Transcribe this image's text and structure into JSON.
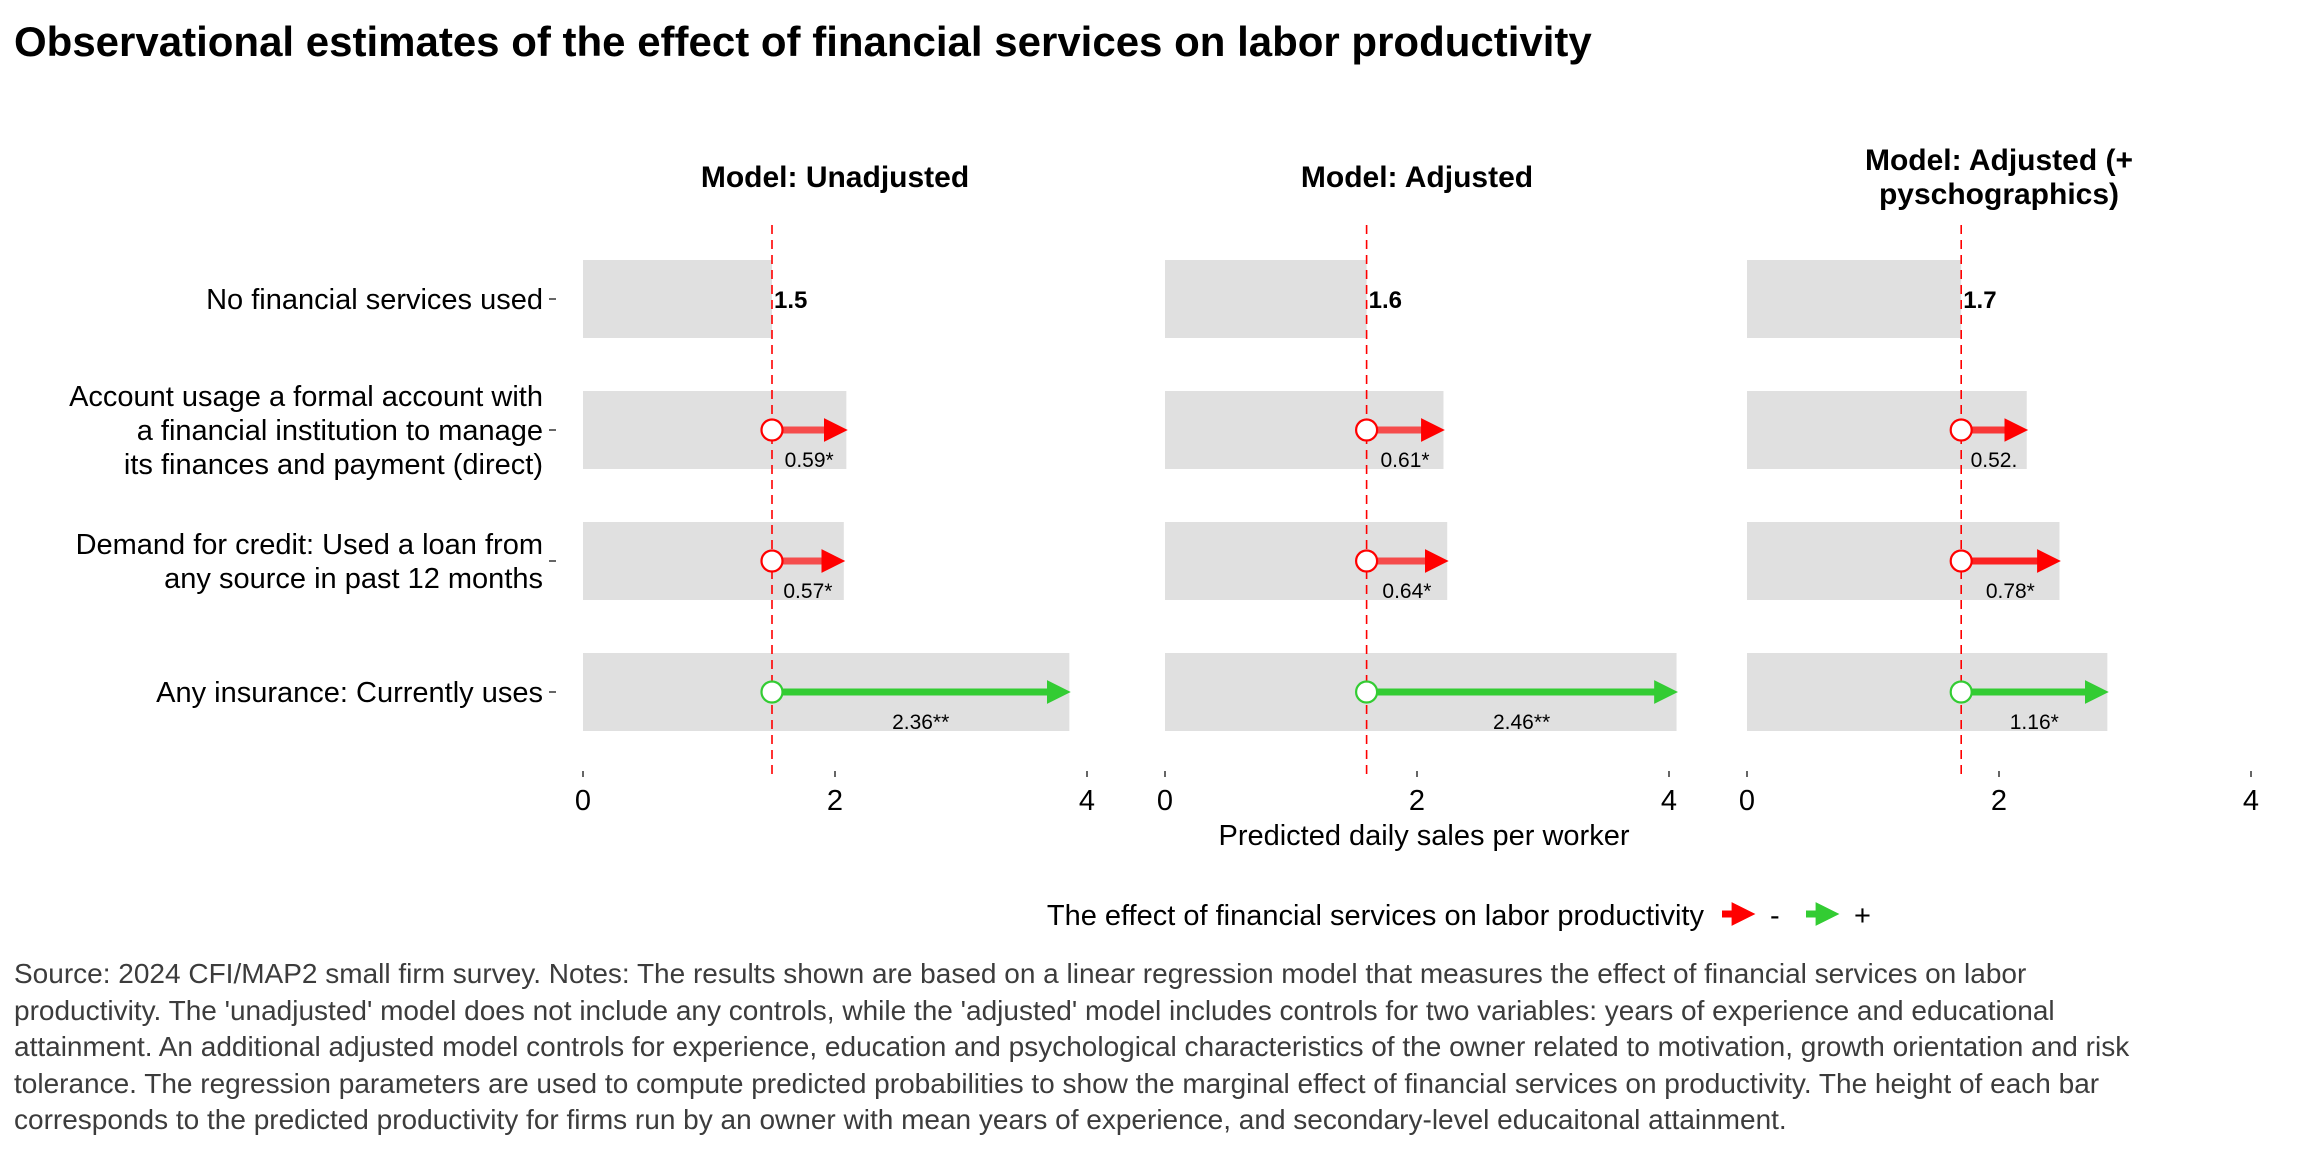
{
  "chart_data": {
    "type": "bar",
    "title": "Observational estimates of the effect of financial services on labor productivity",
    "xlabel": "Predicted daily sales per worker",
    "xlim": [
      0,
      4
    ],
    "xticks": [
      "0",
      "2",
      "4"
    ],
    "categories": [
      [
        "No financial services used"
      ],
      [
        "Account usage a formal account with",
        "a financial institution to manage",
        "its finances and payment (direct)"
      ],
      [
        "Demand for credit: Used a loan from",
        "any source in past 12 months"
      ],
      [
        "Any insurance: Currently uses"
      ]
    ],
    "panels": [
      {
        "name": [
          "Model: Unadjusted"
        ],
        "baseline": 1.5,
        "baseline_label": "1.5",
        "values": [
          1.5,
          2.09,
          2.07,
          3.86
        ],
        "effects": [
          null,
          0.59,
          0.57,
          2.36
        ],
        "effect_labels": [
          "",
          "0.59*",
          "0.57*",
          "2.36**"
        ]
      },
      {
        "name": [
          "Model: Adjusted"
        ],
        "baseline": 1.6,
        "baseline_label": "1.6",
        "values": [
          1.6,
          2.21,
          2.24,
          4.06
        ],
        "effects": [
          null,
          0.61,
          0.64,
          2.46
        ],
        "effect_labels": [
          "",
          "0.61*",
          "0.64*",
          "2.46**"
        ]
      },
      {
        "name": [
          "Model: Adjusted (+",
          "pyschographics)"
        ],
        "baseline": 1.7,
        "baseline_label": "1.7",
        "values": [
          1.7,
          2.22,
          2.48,
          2.86
        ],
        "effects": [
          null,
          0.52,
          0.78,
          1.16
        ],
        "effect_labels": [
          "",
          "0.52.",
          "0.78*",
          "1.16*"
        ]
      }
    ],
    "legend": {
      "title": "The effect of financial services on labor productivity",
      "placement": "bottom",
      "items": [
        {
          "label": "-",
          "color": "#ff0000"
        },
        {
          "label": "+",
          "color": "#33cc33"
        }
      ]
    },
    "colors": {
      "bar": "#e0e0e0",
      "negative": "#ff0000",
      "positive": "#33cc33",
      "reference_line": "#ff0000"
    },
    "grid": false
  },
  "caption": {
    "lines": [
      "Source: 2024 CFI/MAP2 small firm survey. Notes: The results shown are based on a linear regression model that measures the effect of financial services on labor",
      "productivity. The 'unadjusted' model does not include any controls, while the 'adjusted' model includes controls for two variables: years of experience and educational",
      "attainment. An additional adjusted model controls for experience, education and psychological characteristics of the owner related to motivation, growth orientation and risk",
      "tolerance. The regression parameters are used to compute predicted probabilities to show the marginal effect of financial services on productivity. The height of each bar",
      "corresponds to the predicted productivity for firms run by an owner with mean years of experience, and secondary-level educaitonal attainment."
    ]
  }
}
